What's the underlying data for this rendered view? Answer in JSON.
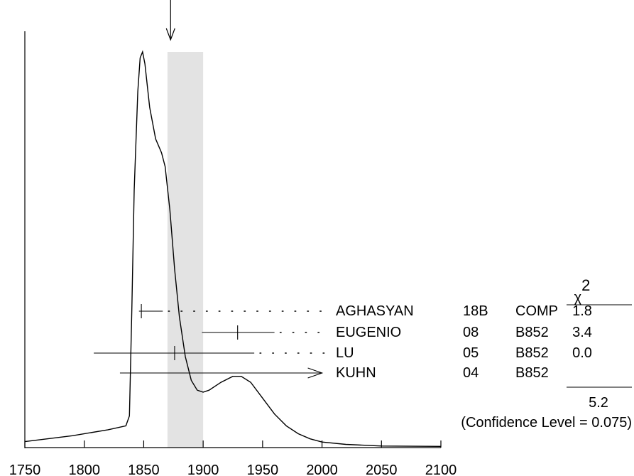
{
  "chart_data": {
    "type": "ideogram",
    "xlim": [
      1750,
      2100
    ],
    "x_ticks": [
      1750,
      1800,
      1850,
      1900,
      1950,
      2000,
      2050,
      2100
    ],
    "x_tick_labels": [
      "1750",
      "1800",
      "1850",
      "1900",
      "1950",
      "2000",
      "2050",
      "2100"
    ],
    "average": {
      "value": 1872.6,
      "band": [
        1870,
        1900
      ]
    },
    "chi2_header": "χ",
    "chi2_exp": "2",
    "measurements": [
      {
        "name": "AGHASYAN",
        "year": "18B",
        "tech": "COMP",
        "chi2": "1.8",
        "value": 1848,
        "lo": 1846,
        "hi": 1866,
        "tick": 1848
      },
      {
        "name": "EUGENIO",
        "year": "08",
        "tech": "B852",
        "chi2": "3.4",
        "value": 1929,
        "lo": 1899,
        "hi": 1960,
        "tick": 1929
      },
      {
        "name": "LU",
        "year": "05",
        "tech": "B852",
        "chi2": "0.0",
        "value": 1876,
        "lo": 1808,
        "hi": 1943,
        "tick": 1876
      },
      {
        "name": "KUHN",
        "year": "04",
        "tech": "B852",
        "chi2": "",
        "value": 1830,
        "lo": 1830,
        "hi": 2000,
        "arrow": true
      }
    ],
    "chi2_total": "5.2",
    "confidence_text": "(Confidence Level = 0.075)",
    "curve": [
      [
        1750,
        0.015
      ],
      [
        1790,
        0.03
      ],
      [
        1820,
        0.045
      ],
      [
        1835,
        0.055
      ],
      [
        1838,
        0.08
      ],
      [
        1840,
        0.35
      ],
      [
        1842,
        0.65
      ],
      [
        1845,
        0.9
      ],
      [
        1847,
        0.985
      ],
      [
        1849,
        1.0
      ],
      [
        1851,
        0.97
      ],
      [
        1855,
        0.86
      ],
      [
        1860,
        0.78
      ],
      [
        1865,
        0.745
      ],
      [
        1868,
        0.71
      ],
      [
        1872,
        0.6
      ],
      [
        1876,
        0.45
      ],
      [
        1880,
        0.33
      ],
      [
        1885,
        0.23
      ],
      [
        1890,
        0.17
      ],
      [
        1895,
        0.145
      ],
      [
        1900,
        0.14
      ],
      [
        1905,
        0.145
      ],
      [
        1915,
        0.165
      ],
      [
        1925,
        0.18
      ],
      [
        1932,
        0.18
      ],
      [
        1940,
        0.165
      ],
      [
        1950,
        0.125
      ],
      [
        1960,
        0.085
      ],
      [
        1970,
        0.055
      ],
      [
        1980,
        0.035
      ],
      [
        1990,
        0.022
      ],
      [
        2000,
        0.014
      ],
      [
        2020,
        0.008
      ],
      [
        2050,
        0.004
      ],
      [
        2100,
        0.003
      ]
    ]
  }
}
